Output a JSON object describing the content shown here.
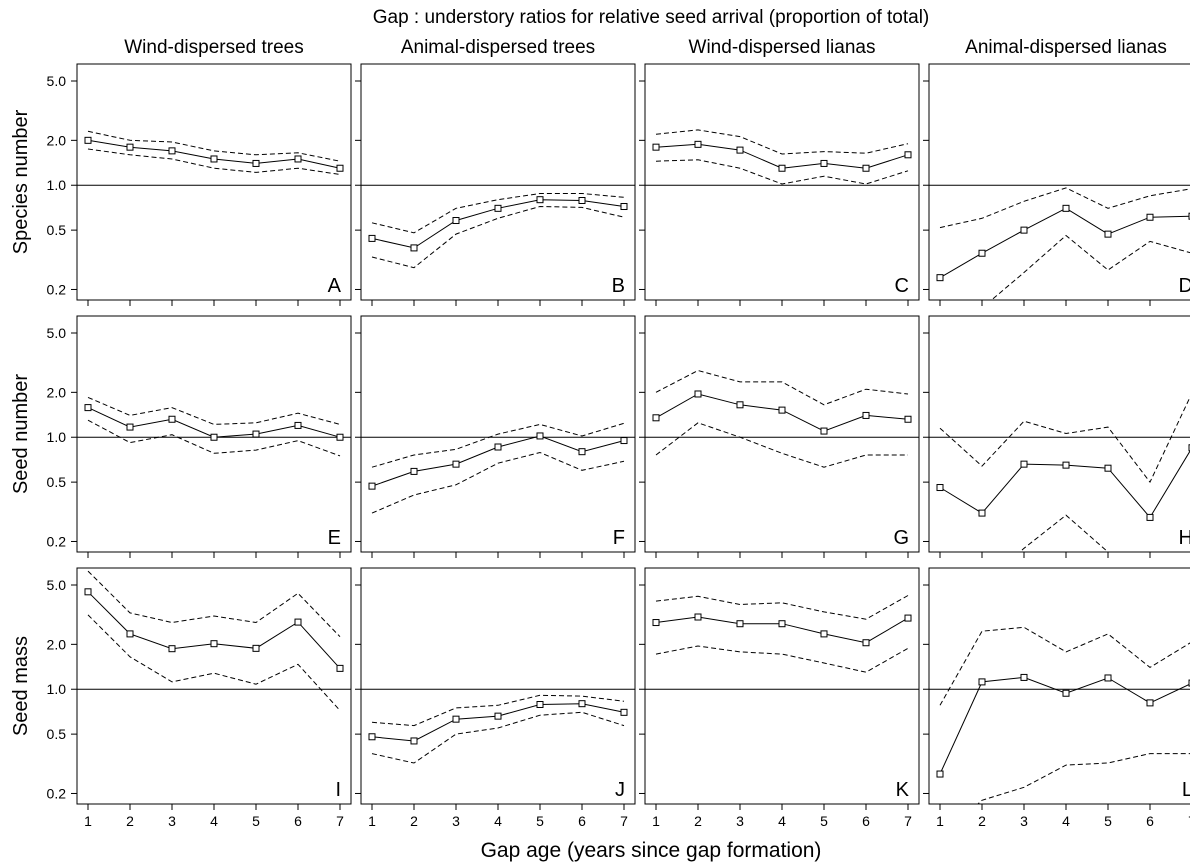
{
  "chart_data": {
    "type": "line",
    "title": "Gap : understory ratios for relative seed arrival (proportion of total)",
    "xlabel": "Gap age (years since gap formation)",
    "y_scale": "log",
    "ylim": [
      0.17,
      6.5
    ],
    "y_ticks": [
      "0.2",
      "0.5",
      "1.0",
      "2.0",
      "5.0"
    ],
    "x_ticks": [
      "1",
      "2",
      "3",
      "4",
      "5",
      "6",
      "7"
    ],
    "reference_line": 1.0,
    "columns": [
      "Wind-dispersed trees",
      "Animal-dispersed trees",
      "Wind-dispersed lianas",
      "Animal-dispersed lianas"
    ],
    "rows": [
      "Species number",
      "Seed number",
      "Seed mass"
    ],
    "x": [
      1,
      2,
      3,
      4,
      5,
      6,
      7
    ],
    "panels": [
      {
        "letter": "A",
        "row": 0,
        "col": 0,
        "mean": [
          2.0,
          1.8,
          1.7,
          1.5,
          1.4,
          1.5,
          1.3
        ],
        "upper": [
          2.3,
          2.0,
          1.95,
          1.7,
          1.6,
          1.65,
          1.45
        ],
        "lower": [
          1.75,
          1.6,
          1.5,
          1.3,
          1.22,
          1.3,
          1.18
        ]
      },
      {
        "letter": "B",
        "row": 0,
        "col": 1,
        "mean": [
          0.44,
          0.38,
          0.58,
          0.7,
          0.8,
          0.79,
          0.72
        ],
        "upper": [
          0.56,
          0.48,
          0.7,
          0.8,
          0.88,
          0.88,
          0.83
        ],
        "lower": [
          0.33,
          0.28,
          0.47,
          0.6,
          0.72,
          0.71,
          0.61
        ]
      },
      {
        "letter": "C",
        "row": 0,
        "col": 2,
        "mean": [
          1.8,
          1.88,
          1.72,
          1.3,
          1.4,
          1.3,
          1.6
        ],
        "upper": [
          2.2,
          2.35,
          2.12,
          1.62,
          1.68,
          1.64,
          1.9
        ],
        "lower": [
          1.45,
          1.48,
          1.3,
          1.02,
          1.15,
          1.02,
          1.25
        ]
      },
      {
        "letter": "D",
        "row": 0,
        "col": 3,
        "mean": [
          0.24,
          0.35,
          0.5,
          0.7,
          0.47,
          0.61,
          0.62
        ],
        "upper": [
          0.52,
          0.6,
          0.78,
          0.96,
          0.7,
          0.85,
          0.95
        ],
        "lower": [
          0.1,
          0.15,
          0.26,
          0.46,
          0.27,
          0.42,
          0.35
        ]
      },
      {
        "letter": "E",
        "row": 1,
        "col": 0,
        "mean": [
          1.58,
          1.17,
          1.32,
          1.0,
          1.05,
          1.2,
          1.0
        ],
        "upper": [
          1.85,
          1.4,
          1.58,
          1.22,
          1.25,
          1.45,
          1.22
        ],
        "lower": [
          1.3,
          0.92,
          1.04,
          0.78,
          0.82,
          0.95,
          0.75
        ]
      },
      {
        "letter": "F",
        "row": 1,
        "col": 1,
        "mean": [
          0.47,
          0.59,
          0.66,
          0.86,
          1.02,
          0.8,
          0.95
        ],
        "upper": [
          0.63,
          0.76,
          0.83,
          1.05,
          1.22,
          1.02,
          1.24
        ],
        "lower": [
          0.31,
          0.41,
          0.48,
          0.67,
          0.79,
          0.6,
          0.69
        ]
      },
      {
        "letter": "G",
        "row": 1,
        "col": 2,
        "mean": [
          1.35,
          1.95,
          1.65,
          1.52,
          1.1,
          1.4,
          1.32
        ],
        "upper": [
          2.0,
          2.8,
          2.35,
          2.35,
          1.65,
          2.1,
          1.95
        ],
        "lower": [
          0.76,
          1.25,
          1.0,
          0.78,
          0.63,
          0.76,
          0.76
        ]
      },
      {
        "letter": "H",
        "row": 1,
        "col": 3,
        "mean": [
          0.46,
          0.31,
          0.66,
          0.65,
          0.62,
          0.29,
          0.85
        ],
        "upper": [
          1.15,
          0.64,
          1.28,
          1.06,
          1.17,
          0.5,
          1.98
        ],
        "lower": [
          0.1,
          0.1,
          0.18,
          0.3,
          0.17,
          0.1,
          0.1
        ]
      },
      {
        "letter": "I",
        "row": 2,
        "col": 0,
        "mean": [
          4.5,
          2.35,
          1.87,
          2.02,
          1.88,
          2.82,
          1.38
        ],
        "upper": [
          6.2,
          3.25,
          2.8,
          3.1,
          2.8,
          4.4,
          2.25
        ],
        "lower": [
          3.15,
          1.65,
          1.12,
          1.28,
          1.08,
          1.47,
          0.72
        ]
      },
      {
        "letter": "J",
        "row": 2,
        "col": 1,
        "mean": [
          0.48,
          0.45,
          0.63,
          0.66,
          0.79,
          0.8,
          0.7
        ],
        "upper": [
          0.6,
          0.57,
          0.75,
          0.78,
          0.91,
          0.9,
          0.83
        ],
        "lower": [
          0.37,
          0.32,
          0.5,
          0.55,
          0.67,
          0.7,
          0.57
        ]
      },
      {
        "letter": "K",
        "row": 2,
        "col": 2,
        "mean": [
          2.8,
          3.05,
          2.75,
          2.75,
          2.35,
          2.05,
          3.0
        ],
        "upper": [
          3.9,
          4.2,
          3.7,
          3.8,
          3.3,
          2.95,
          4.25
        ],
        "lower": [
          1.72,
          1.95,
          1.78,
          1.72,
          1.5,
          1.3,
          1.88
        ]
      },
      {
        "letter": "L",
        "row": 2,
        "col": 3,
        "mean": [
          0.27,
          1.12,
          1.2,
          0.94,
          1.19,
          0.81,
          1.1
        ],
        "upper": [
          0.78,
          2.45,
          2.6,
          1.78,
          2.35,
          1.4,
          2.08
        ],
        "lower": [
          0.1,
          0.18,
          0.22,
          0.31,
          0.32,
          0.37,
          0.37
        ]
      }
    ]
  }
}
